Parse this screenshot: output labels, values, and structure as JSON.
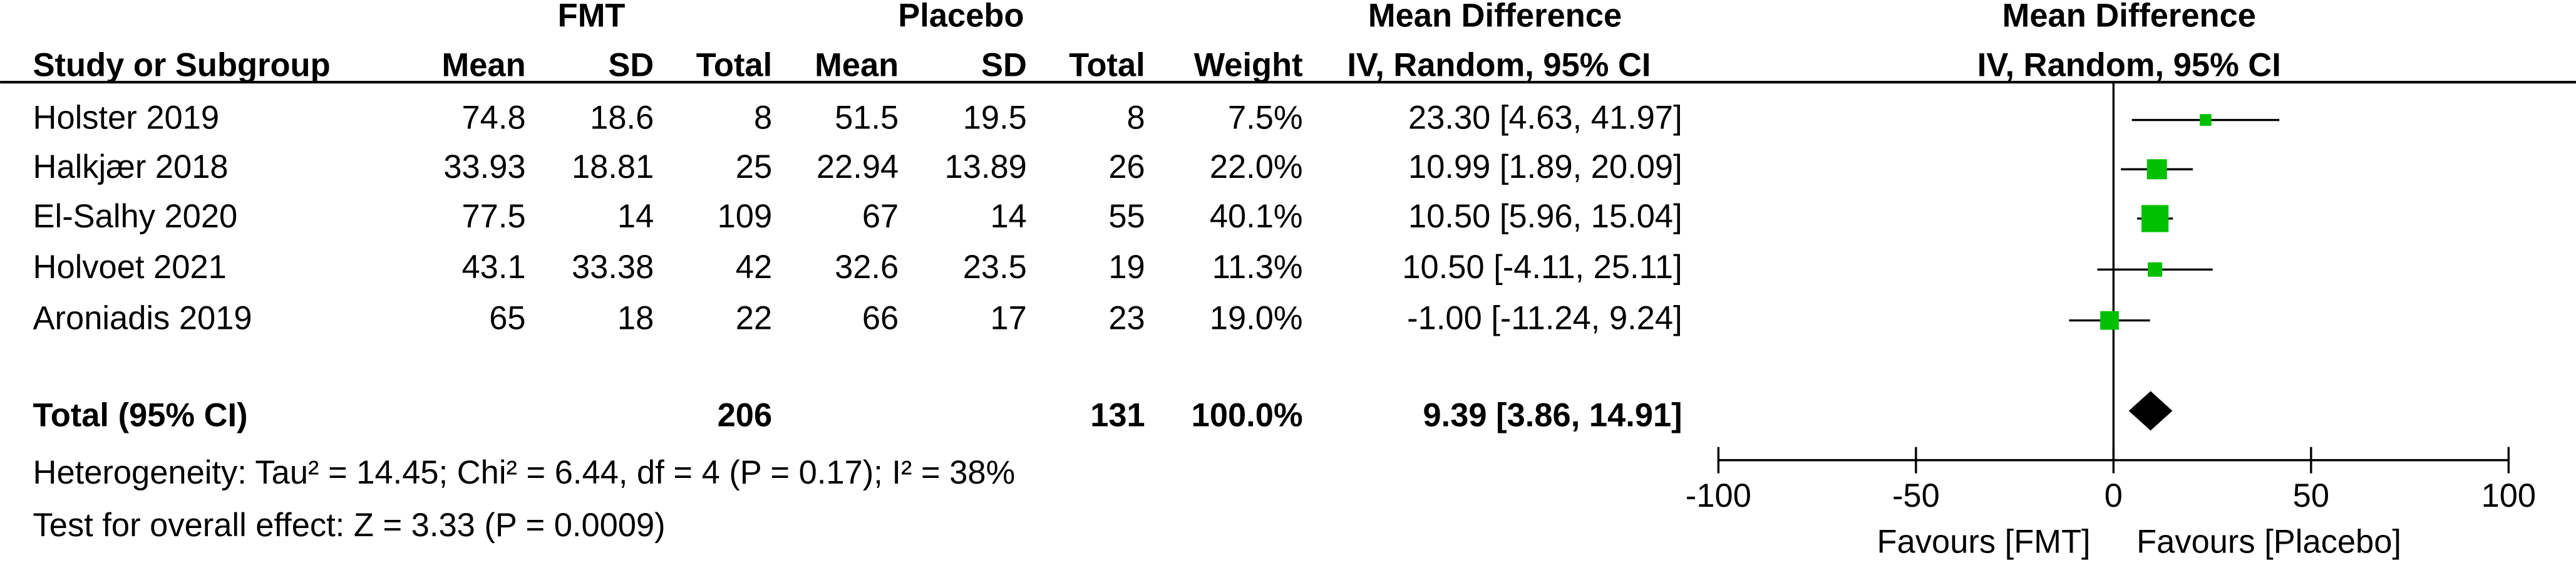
{
  "chart_data": {
    "type": "forest",
    "group_headers": [
      "FMT",
      "Placebo"
    ],
    "effect_header": "Mean Difference",
    "effect_subheader": "IV, Random, 95% CI",
    "plot_header": "Mean Difference",
    "plot_subheader": "IV, Random, 95% CI",
    "columns": [
      "Study or Subgroup",
      "Mean",
      "SD",
      "Total",
      "Mean",
      "SD",
      "Total",
      "Weight"
    ],
    "studies": [
      {
        "name": "Holster 2019",
        "fmt_mean": 74.8,
        "fmt_sd": 18.6,
        "fmt_total": 8,
        "pl_mean": 51.5,
        "pl_sd": 19.5,
        "pl_total": 8,
        "weight": 7.5,
        "weight_label": "7.5%",
        "ci_label": "23.30 [4.63, 41.97]",
        "md": 23.3,
        "lower": 4.63,
        "upper": 41.97
      },
      {
        "name": "Halkjær 2018",
        "fmt_mean": 33.93,
        "fmt_sd": 18.81,
        "fmt_total": 25,
        "pl_mean": 22.94,
        "pl_sd": 13.89,
        "pl_total": 26,
        "weight": 22.0,
        "weight_label": "22.0%",
        "ci_label": "10.99 [1.89, 20.09]",
        "md": 10.99,
        "lower": 1.89,
        "upper": 20.09
      },
      {
        "name": "El-Salhy 2020",
        "fmt_mean": 77.5,
        "fmt_sd": 14,
        "fmt_total": 109,
        "pl_mean": 67,
        "pl_sd": 14,
        "pl_total": 55,
        "weight": 40.1,
        "weight_label": "40.1%",
        "ci_label": "10.50 [5.96, 15.04]",
        "md": 10.5,
        "lower": 5.96,
        "upper": 15.04
      },
      {
        "name": "Holvoet 2021",
        "fmt_mean": 43.1,
        "fmt_sd": 33.38,
        "fmt_total": 42,
        "pl_mean": 32.6,
        "pl_sd": 23.5,
        "pl_total": 19,
        "weight": 11.3,
        "weight_label": "11.3%",
        "ci_label": "10.50 [-4.11, 25.11]",
        "md": 10.5,
        "lower": -4.11,
        "upper": 25.11
      },
      {
        "name": "Aroniadis 2019",
        "fmt_mean": 65,
        "fmt_sd": 18,
        "fmt_total": 22,
        "pl_mean": 66,
        "pl_sd": 17,
        "pl_total": 23,
        "weight": 19.0,
        "weight_label": "19.0%",
        "ci_label": "-1.00 [-11.24, 9.24]",
        "md": -1.0,
        "lower": -11.24,
        "upper": 9.24
      }
    ],
    "total": {
      "name": "Total (95% CI)",
      "fmt_total": 206,
      "pl_total": 131,
      "weight": 100.0,
      "weight_label": "100.0%",
      "ci_label": "9.39 [3.86, 14.91]",
      "md": 9.39,
      "lower": 3.86,
      "upper": 14.91
    },
    "heterogeneity": "Heterogeneity: Tau² = 14.45; Chi² = 6.44, df = 4 (P = 0.17); I² = 38%",
    "overall_effect": "Test for overall effect: Z = 3.33 (P = 0.0009)",
    "xlim": [
      -100,
      100
    ],
    "xticks": [
      -100,
      -50,
      0,
      50,
      100
    ],
    "favours_left": "Favours [FMT]",
    "favours_right": "Favours [Placebo]",
    "marker_color": "#00c000",
    "diamond_color": "#000000"
  }
}
